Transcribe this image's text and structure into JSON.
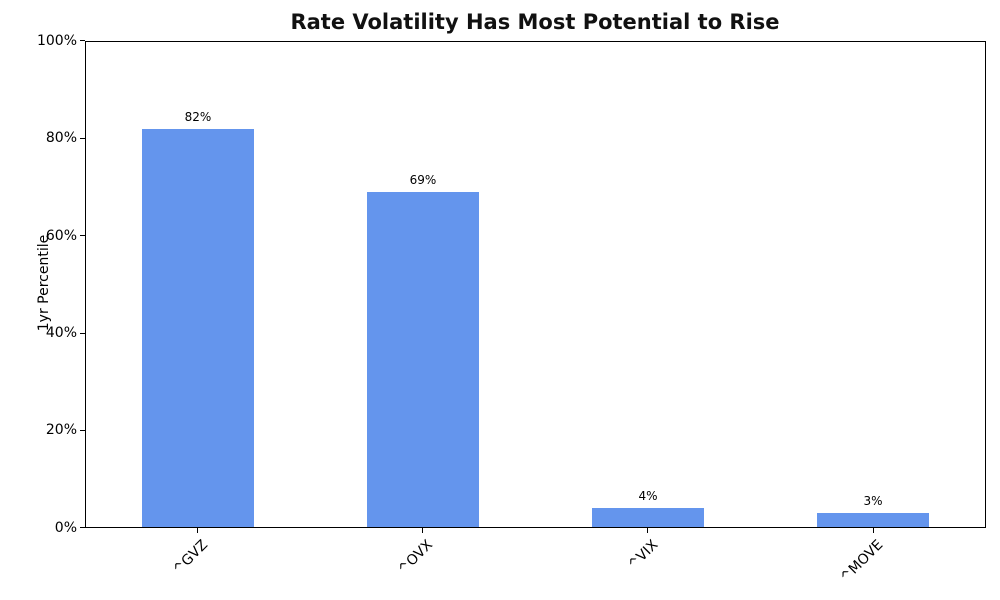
{
  "chart_data": {
    "type": "bar",
    "title": "Rate Volatility Has Most Potential to Rise",
    "xlabel": "",
    "ylabel": "1yr Percentile",
    "categories": [
      "^GVZ",
      "^OVX",
      "^VIX",
      "^MOVE"
    ],
    "values": [
      82,
      69,
      4,
      3
    ],
    "bar_labels": [
      "82%",
      "69%",
      "4%",
      "3%"
    ],
    "yticks": [
      "0%",
      "20%",
      "40%",
      "60%",
      "80%",
      "100%"
    ],
    "ylim": [
      0,
      100
    ],
    "bar_color": "#6495ED",
    "grid": false,
    "legend_position": "none",
    "xtick_rotation_deg": 45,
    "background_color": "#ffffff"
  }
}
